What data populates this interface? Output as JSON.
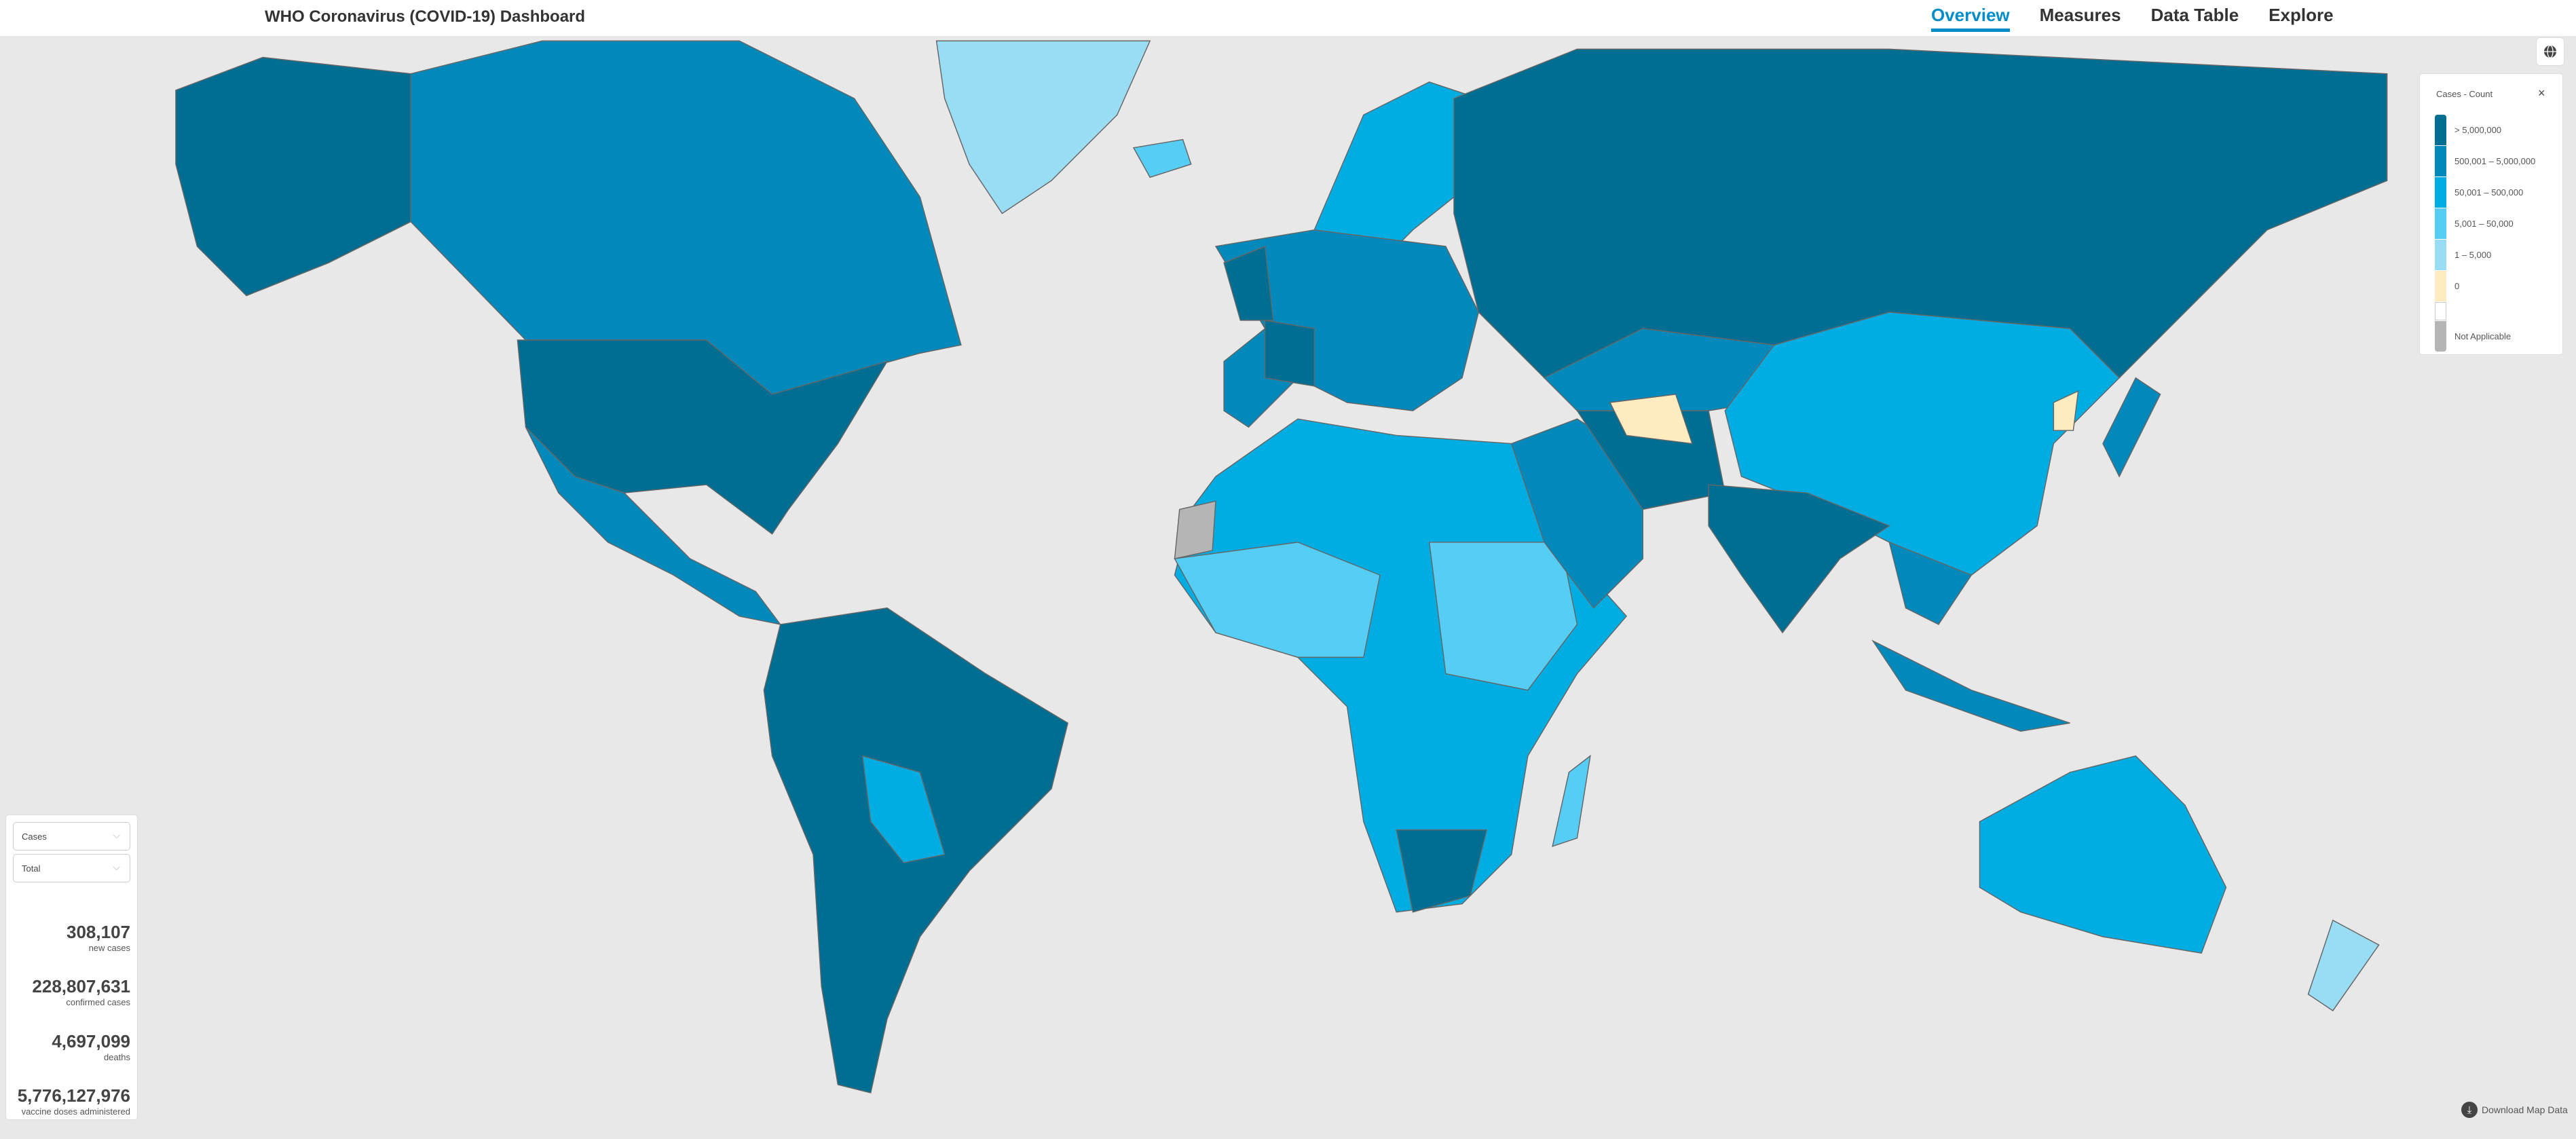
{
  "header": {
    "title": "WHO Coronavirus (COVID-19) Dashboard",
    "nav": [
      {
        "label": "Overview",
        "active": true
      },
      {
        "label": "Measures",
        "active": false
      },
      {
        "label": "Data Table",
        "active": false
      },
      {
        "label": "Explore",
        "active": false
      }
    ]
  },
  "legend": {
    "title": "Cases - Count",
    "close_icon": "close-icon",
    "items": [
      {
        "label": "> 5,000,000",
        "color": "#006E92"
      },
      {
        "label": "500,001 – 5,000,000",
        "color": "#0089BA"
      },
      {
        "label": "50,001 – 500,000",
        "color": "#00ADE2"
      },
      {
        "label": "5,001 – 50,000",
        "color": "#55CDF5"
      },
      {
        "label": "1 – 5,000",
        "color": "#99DDF5"
      },
      {
        "label": "0",
        "color": "#FFEBC0"
      },
      {
        "label": "",
        "color": "#FFFFFF"
      },
      {
        "label": "Not Applicable",
        "color": "#B5B5B5"
      }
    ]
  },
  "map_toggle_icon": "globe-icon",
  "panel": {
    "metric_select": "Cases",
    "period_select": "Total",
    "stats": [
      {
        "value": "308,107",
        "label": "new cases"
      },
      {
        "value": "228,807,631",
        "label": "confirmed cases"
      },
      {
        "value": "4,697,099",
        "label": "deaths"
      },
      {
        "value": "5,776,127,976",
        "label": "vaccine doses administered"
      }
    ]
  },
  "download": {
    "label": "Download Map Data",
    "icon": "download-icon"
  }
}
